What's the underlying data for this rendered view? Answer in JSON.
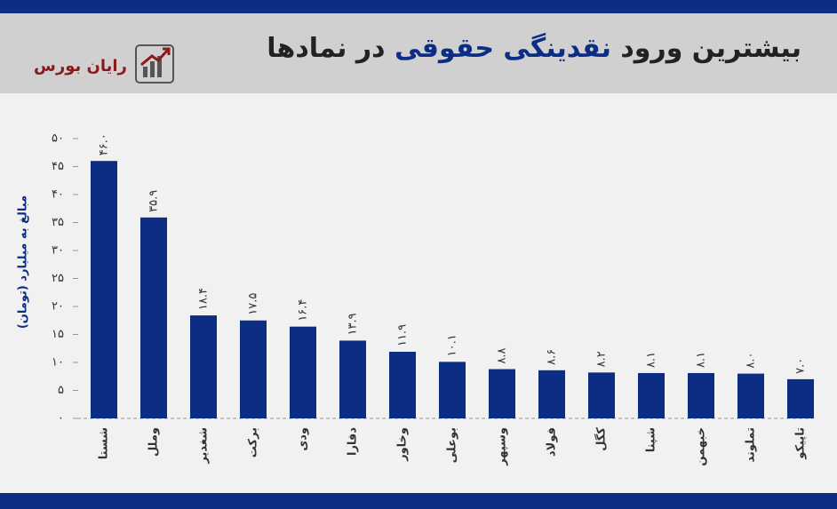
{
  "header": {
    "title_part1": "بیشترین ورود",
    "title_accent": "نقدینگی حقوقی",
    "title_part2": "در نمادها",
    "brand": "رایان بورس",
    "brand_icon": "chart-growth-icon"
  },
  "colors": {
    "bar": "#0b2d84",
    "accent": "#0b2d84",
    "brand": "#8b1a1a",
    "band": "#0b2d84"
  },
  "chart_data": {
    "type": "bar",
    "ylabel": "مبالغ به میلیارد (تومان)",
    "ylim": [
      0,
      50
    ],
    "yticks": [
      0,
      5,
      10,
      15,
      20,
      25,
      30,
      35,
      40,
      45,
      50
    ],
    "ytick_labels": [
      "۰",
      "۵",
      "۱۰",
      "۱۵",
      "۲۰",
      "۲۵",
      "۳۰",
      "۳۵",
      "۴۰",
      "۴۵",
      "۵۰"
    ],
    "categories": [
      "شستا",
      "وملل",
      "شغدیر",
      "برکت",
      "ودی",
      "دفارا",
      "وخاور",
      "بوعلی",
      "وسپهر",
      "فولاد",
      "کگل",
      "شپنا",
      "خبهمن",
      "تملوند",
      "تاپیکو"
    ],
    "values": [
      46.0,
      35.9,
      18.4,
      17.5,
      16.4,
      13.9,
      11.9,
      10.1,
      8.8,
      8.6,
      8.2,
      8.1,
      8.1,
      8.0,
      7.0
    ],
    "data_labels": [
      "۴۶.۰",
      "۳۵.۹",
      "۱۸.۴",
      "۱۷.۵",
      "۱۶.۴",
      "۱۳.۹",
      "۱۱.۹",
      "۱۰.۱",
      "۸.۸",
      "۸.۶",
      "۸.۲",
      "۸.۱",
      "۸.۱",
      "۸.۰",
      "۷.۰"
    ],
    "grid": false
  }
}
